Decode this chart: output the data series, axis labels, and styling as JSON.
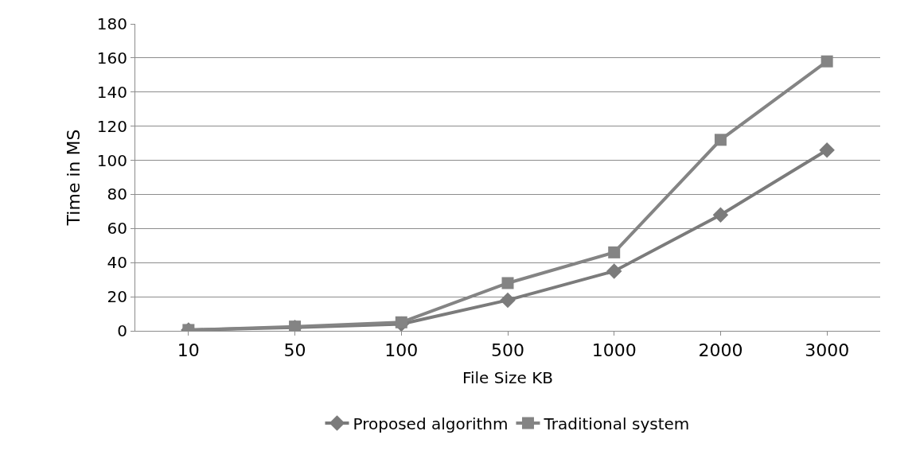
{
  "chart_data": {
    "type": "line",
    "xlabel": "File Size KB",
    "ylabel": "Time in MS",
    "categories": [
      "10",
      "50",
      "100",
      "500",
      "1000",
      "2000",
      "3000"
    ],
    "series": [
      {
        "name": "Proposed algorithm",
        "color": "#7b7b7b",
        "marker": "diamond",
        "values": [
          0.5,
          2,
          4,
          18,
          35,
          68,
          106
        ]
      },
      {
        "name": "Traditional system",
        "color": "#848484",
        "marker": "square",
        "values": [
          0.5,
          2.5,
          5,
          28,
          46,
          112,
          158
        ]
      }
    ],
    "ylim": [
      0,
      180
    ],
    "yticks": [
      0,
      20,
      40,
      60,
      80,
      100,
      120,
      140,
      160,
      180
    ],
    "grid": "y",
    "legend": "bottom",
    "line_style": "solid"
  }
}
